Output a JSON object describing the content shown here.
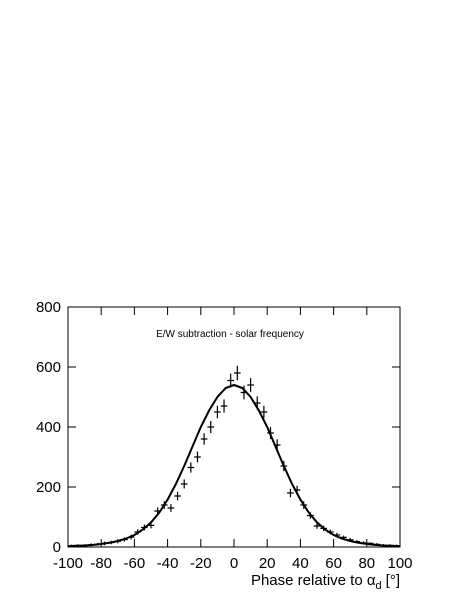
{
  "chart_data": {
    "type": "errorbar",
    "annotation": "E/W subtraction - solar frequency",
    "xlabel": {
      "text": "Phase relative to α",
      "subscript": "d",
      "unit": "[°]"
    },
    "x": [
      -98,
      -94,
      -90,
      -86,
      -82,
      -78,
      -74,
      -70,
      -66,
      -62,
      -58,
      -54,
      -50,
      -46,
      -42,
      -38,
      -34,
      -30,
      -26,
      -22,
      -18,
      -14,
      -10,
      -6,
      -2,
      2,
      6,
      10,
      14,
      18,
      22,
      26,
      30,
      34,
      38,
      42,
      46,
      50,
      54,
      58,
      62,
      66,
      70,
      74,
      78,
      82,
      86,
      90,
      94,
      98
    ],
    "bin_width": 4,
    "values": [
      4,
      5,
      5,
      7,
      9,
      12,
      15,
      19,
      25,
      33,
      50,
      65,
      72,
      120,
      140,
      130,
      170,
      210,
      265,
      300,
      360,
      400,
      450,
      470,
      555,
      580,
      515,
      540,
      480,
      450,
      380,
      340,
      270,
      180,
      190,
      140,
      105,
      70,
      62,
      50,
      40,
      32,
      24,
      18,
      14,
      12,
      9,
      6,
      5,
      4
    ],
    "errors": [
      4,
      4,
      4,
      5,
      5,
      6,
      6,
      7,
      7,
      8,
      9,
      10,
      10,
      12,
      13,
      13,
      14,
      15,
      17,
      18,
      19,
      20,
      21,
      22,
      23,
      24,
      23,
      23,
      22,
      21,
      20,
      19,
      17,
      14,
      14,
      13,
      11,
      9,
      9,
      8,
      7,
      6,
      6,
      5,
      5,
      4,
      4,
      4,
      4,
      4
    ],
    "fit": {
      "x": [
        -100,
        -95,
        -90,
        -85,
        -80,
        -75,
        -70,
        -65,
        -60,
        -55,
        -50,
        -45,
        -40,
        -35,
        -30,
        -25,
        -20,
        -15,
        -10,
        -5,
        0,
        5,
        10,
        15,
        20,
        25,
        30,
        35,
        40,
        45,
        50,
        55,
        60,
        65,
        70,
        75,
        80,
        85,
        90,
        95,
        100
      ],
      "values": [
        3,
        4,
        5,
        7,
        10,
        14,
        20,
        28,
        40,
        58,
        82,
        115,
        158,
        210,
        270,
        335,
        400,
        455,
        500,
        530,
        540,
        530,
        500,
        455,
        400,
        335,
        270,
        210,
        158,
        115,
        82,
        58,
        40,
        28,
        20,
        14,
        10,
        7,
        5,
        4,
        3
      ]
    },
    "color": "#000000",
    "xlim": [
      -100,
      100
    ],
    "xticks": [
      -100,
      -80,
      -60,
      -40,
      -20,
      0,
      20,
      40,
      60,
      80,
      100
    ],
    "ylim": [
      0,
      800
    ],
    "yticks": [
      0,
      200,
      400,
      600,
      800
    ]
  }
}
